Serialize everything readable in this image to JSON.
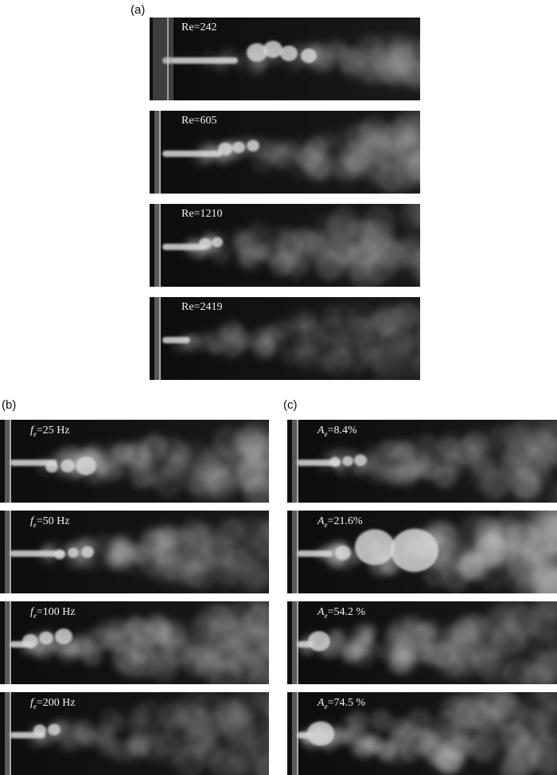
{
  "figure": {
    "group_a": {
      "label": "(a)",
      "panels": [
        {
          "text": "Re=242"
        },
        {
          "text": "Re=605"
        },
        {
          "text": "Re=1210"
        },
        {
          "text": "Re=2419"
        }
      ]
    },
    "group_b": {
      "label": "(b)",
      "symbol": "f",
      "subscript": "e",
      "panels": [
        {
          "text": "=25 Hz"
        },
        {
          "text": "=50 Hz"
        },
        {
          "text": "=100 Hz"
        },
        {
          "text": "=200 Hz"
        }
      ]
    },
    "group_c": {
      "label": "(c)",
      "symbol": "A",
      "subscript": "e",
      "panels": [
        {
          "text": "=8.4%"
        },
        {
          "text": "=21.6%"
        },
        {
          "text": "=54.2 %"
        },
        {
          "text": "=74.5 %"
        }
      ]
    }
  },
  "colors": {
    "background": "#121212",
    "smoke": "#d9d9d9",
    "nozzle": "#9a9a9a"
  }
}
